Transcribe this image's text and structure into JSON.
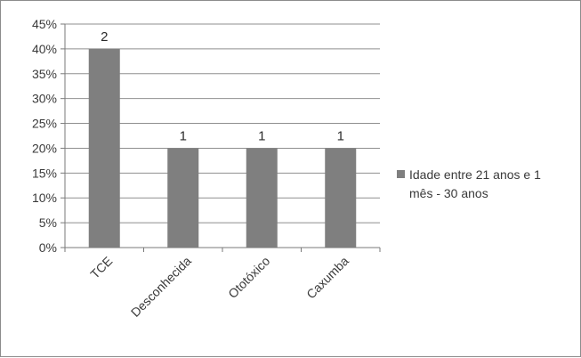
{
  "chart_data": {
    "type": "bar",
    "categories": [
      "TCE",
      "Desconhecida",
      "Ototóxico",
      "Caxumba"
    ],
    "series": [
      {
        "name": "Idade entre 21 anos e 1 mês - 30 anos",
        "values": [
          0.4,
          0.2,
          0.2,
          0.2
        ],
        "data_labels": [
          "2",
          "1",
          "1",
          "1"
        ]
      }
    ],
    "ylim": [
      0,
      0.45
    ],
    "ytick_values": [
      0,
      0.05,
      0.1,
      0.15,
      0.2,
      0.25,
      0.3,
      0.35,
      0.4,
      0.45
    ],
    "ytick_labels": [
      "0%",
      "5%",
      "10%",
      "15%",
      "20%",
      "25%",
      "30%",
      "35%",
      "40%",
      "45%"
    ],
    "grid": true,
    "legend_position": "right",
    "legend_lines": [
      "Idade entre 21 anos e 1",
      "mês - 30 anos"
    ],
    "colors": {
      "bar": "#7f7f7f",
      "grid": "#8f8f8f",
      "axis": "#7a7a7a",
      "frame": "#8c8c8c"
    }
  }
}
